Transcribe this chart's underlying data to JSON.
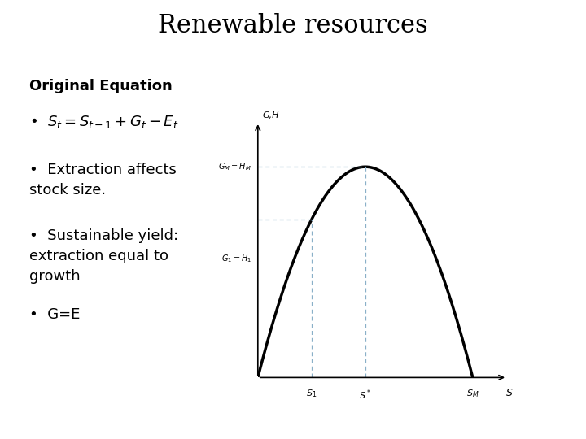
{
  "title": "Renewable resources",
  "title_fontsize": 22,
  "title_fontfamily": "serif",
  "background_color": "#ffffff",
  "bullet_header": "Original Equation",
  "bullets": [
    "$S_t = S_{t-1} + G_t - E_t$",
    "Extraction affects\nstock size.",
    "Sustainable yield:\nextraction equal to\ngrowth",
    "G=E"
  ],
  "bullet_fontsize": 13,
  "header_fontsize": 13,
  "graph": {
    "S1": 0.25,
    "S_star": 0.5,
    "SM": 1.0,
    "curve_color": "#000000",
    "curve_lw": 2.5,
    "dashed_color": "#8ab0c8",
    "dashed_lw": 0.9,
    "axis_color": "#000000",
    "axis_lw": 1.2,
    "label_fontsize": 8,
    "x_label": "$S$",
    "y_label": "G,H",
    "x_ticks": [
      "$S_1$",
      "$S^*$",
      "$S_M$"
    ],
    "x_tick_vals": [
      0.25,
      0.5,
      1.0
    ],
    "y_tick_labels": [
      "$G_1 = H_1$",
      "$G_M = H_{M}$"
    ],
    "y_tick_vals": [
      0.45,
      0.8
    ]
  }
}
